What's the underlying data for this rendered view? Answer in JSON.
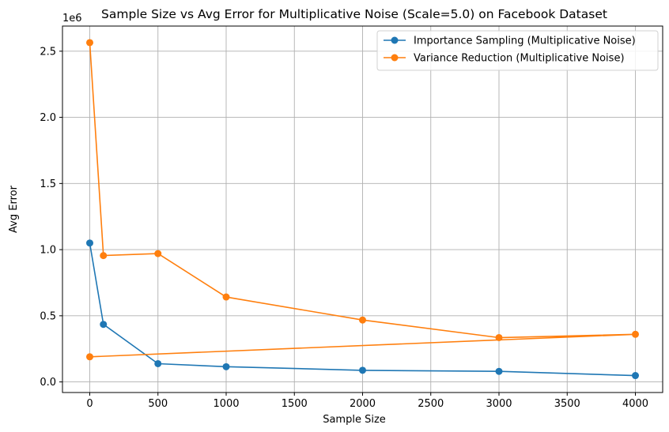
{
  "chart_data": {
    "type": "line",
    "title": "Sample Size vs Avg Error for Multiplicative Noise (Scale=5.0) on Facebook Dataset",
    "xlabel": "Sample Size",
    "ylabel": "Avg Error",
    "y_offset_label": "1e6",
    "xlim": [
      -200,
      4200
    ],
    "ylim": [
      -80000,
      2690000
    ],
    "xticks": [
      0,
      500,
      1000,
      1500,
      2000,
      2500,
      3000,
      3500,
      4000
    ],
    "xtick_labels": [
      "0",
      "500",
      "1000",
      "1500",
      "2000",
      "2500",
      "3000",
      "3500",
      "4000"
    ],
    "yticks": [
      0,
      500000,
      1000000,
      1500000,
      2000000,
      2500000
    ],
    "ytick_labels": [
      "0.0",
      "0.5",
      "1.0",
      "1.5",
      "2.0",
      "2.5"
    ],
    "grid": true,
    "legend_position": "top-right",
    "series": [
      {
        "name": "Importance Sampling (Multiplicative Noise)",
        "color": "#1f77b4",
        "marker": "circle",
        "x": [
          0,
          100,
          500,
          1000,
          2000,
          3000,
          4000
        ],
        "y": [
          1050000,
          435000,
          138000,
          115000,
          88000,
          80000,
          48000
        ]
      },
      {
        "name": "Variance Reduction (Multiplicative Noise)",
        "color": "#ff7f0e",
        "marker": "circle",
        "x": [
          0,
          100,
          500,
          1000,
          2000,
          3000,
          4000,
          0
        ],
        "y": [
          2565000,
          955000,
          970000,
          642000,
          468000,
          335000,
          360000,
          190000
        ]
      }
    ]
  }
}
